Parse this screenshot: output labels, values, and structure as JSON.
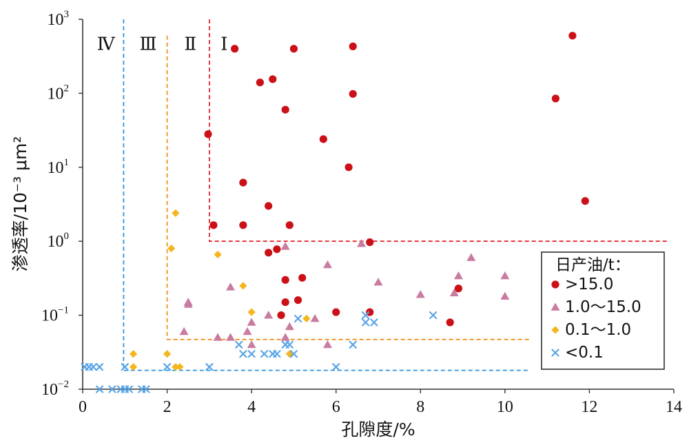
{
  "chart_data": {
    "type": "scatter",
    "title": "",
    "xlabel": "孔隙度/%",
    "ylabel": "渗透率/10⁻³ μm²",
    "xlim": [
      0,
      14
    ],
    "ylim": [
      0.01,
      1000
    ],
    "yscale": "log",
    "x_ticks": [
      "0",
      "2",
      "4",
      "6",
      "8",
      "10",
      "12",
      "14"
    ],
    "y_ticks": [
      {
        "value": 0.01,
        "base": "10",
        "exp": "−2"
      },
      {
        "value": 0.1,
        "base": "10",
        "exp": "−1"
      },
      {
        "value": 1,
        "base": "10",
        "exp": "0"
      },
      {
        "value": 10,
        "base": "10",
        "exp": "1"
      },
      {
        "value": 100,
        "base": "10",
        "exp": "2"
      },
      {
        "value": 1000,
        "base": "10",
        "exp": "3"
      }
    ],
    "grid": false,
    "legend": {
      "title": "日产油/t：",
      "placement": "bottom-right"
    },
    "region_labels": [
      {
        "label": "Ⅳ",
        "x": 0.55,
        "y": 700
      },
      {
        "label": "Ⅲ",
        "x": 1.55,
        "y": 700
      },
      {
        "label": "Ⅱ",
        "x": 2.55,
        "y": 700
      },
      {
        "label": "Ⅰ",
        "x": 3.35,
        "y": 700
      }
    ],
    "boundaries": [
      {
        "color": "#e0262e",
        "path": [
          [
            3.0,
            1000
          ],
          [
            3.0,
            1.0
          ],
          [
            13.9,
            1.0
          ]
        ]
      },
      {
        "color": "#f2901c",
        "path": [
          [
            2.0,
            600
          ],
          [
            2.0,
            0.047
          ],
          [
            10.6,
            0.047
          ]
        ]
      },
      {
        "color": "#2e94e0",
        "path": [
          [
            0.97,
            1000
          ],
          [
            0.97,
            0.018
          ],
          [
            10.6,
            0.018
          ]
        ]
      }
    ],
    "series": [
      {
        "name": ">15.0",
        "marker": "circle",
        "color": "#cc1018",
        "points": [
          [
            11.6,
            600
          ],
          [
            3.6,
            400
          ],
          [
            5.0,
            400
          ],
          [
            6.4,
            430
          ],
          [
            4.2,
            140
          ],
          [
            4.5,
            155
          ],
          [
            6.4,
            98
          ],
          [
            4.8,
            60
          ],
          [
            11.2,
            85
          ],
          [
            2.97,
            28
          ],
          [
            5.7,
            24
          ],
          [
            6.3,
            10
          ],
          [
            3.8,
            6.2
          ],
          [
            11.9,
            3.5
          ],
          [
            4.4,
            3.0
          ],
          [
            3.1,
            1.65
          ],
          [
            3.8,
            1.65
          ],
          [
            4.9,
            1.65
          ],
          [
            6.8,
            0.97
          ],
          [
            4.6,
            0.78
          ],
          [
            4.4,
            0.7
          ],
          [
            4.8,
            0.3
          ],
          [
            5.2,
            0.32
          ],
          [
            8.9,
            0.23
          ],
          [
            4.8,
            0.15
          ],
          [
            5.1,
            0.16
          ],
          [
            4.7,
            0.1
          ],
          [
            6.0,
            0.11
          ],
          [
            6.8,
            0.11
          ],
          [
            8.7,
            0.08
          ]
        ]
      },
      {
        "name": "1.0～15.0",
        "marker": "triangle",
        "color": "#c97ba0",
        "points": [
          [
            4.8,
            0.85
          ],
          [
            6.6,
            0.93
          ],
          [
            9.2,
            0.6
          ],
          [
            5.8,
            0.48
          ],
          [
            8.9,
            0.34
          ],
          [
            10.0,
            0.34
          ],
          [
            7.0,
            0.28
          ],
          [
            3.5,
            0.24
          ],
          [
            8.0,
            0.19
          ],
          [
            8.8,
            0.2
          ],
          [
            10.0,
            0.18
          ],
          [
            2.5,
            0.15
          ],
          [
            2.5,
            0.14
          ],
          [
            4.4,
            0.1
          ],
          [
            4.9,
            0.07
          ],
          [
            4.0,
            0.08
          ],
          [
            5.5,
            0.09
          ],
          [
            3.9,
            0.06
          ],
          [
            2.4,
            0.06
          ],
          [
            3.2,
            0.05
          ],
          [
            3.5,
            0.05
          ],
          [
            4.8,
            0.05
          ],
          [
            4.0,
            0.04
          ],
          [
            5.8,
            0.04
          ]
        ]
      },
      {
        "name": "0.1～1.0",
        "marker": "diamond",
        "color": "#f5b51e",
        "points": [
          [
            2.2,
            2.4
          ],
          [
            2.1,
            0.8
          ],
          [
            3.2,
            0.66
          ],
          [
            3.8,
            0.25
          ],
          [
            4.0,
            0.11
          ],
          [
            5.3,
            0.09
          ],
          [
            1.2,
            0.03
          ],
          [
            2.0,
            0.03
          ],
          [
            4.9,
            0.03
          ],
          [
            1.2,
            0.02
          ],
          [
            2.2,
            0.02
          ],
          [
            2.3,
            0.02
          ]
        ]
      },
      {
        "name": "<0.1",
        "marker": "cross",
        "color": "#5aa5e6",
        "points": [
          [
            0.05,
            0.02
          ],
          [
            0.15,
            0.02
          ],
          [
            0.25,
            0.02
          ],
          [
            0.4,
            0.02
          ],
          [
            1.0,
            0.02
          ],
          [
            2.0,
            0.02
          ],
          [
            3.0,
            0.02
          ],
          [
            6.0,
            0.02
          ],
          [
            0.4,
            0.01
          ],
          [
            0.7,
            0.01
          ],
          [
            0.9,
            0.01
          ],
          [
            1.0,
            0.01
          ],
          [
            1.1,
            0.01
          ],
          [
            1.4,
            0.01
          ],
          [
            1.5,
            0.01
          ],
          [
            3.7,
            0.04
          ],
          [
            3.8,
            0.03
          ],
          [
            4.0,
            0.03
          ],
          [
            4.3,
            0.03
          ],
          [
            4.5,
            0.03
          ],
          [
            4.6,
            0.03
          ],
          [
            4.8,
            0.04
          ],
          [
            4.9,
            0.04
          ],
          [
            5.0,
            0.03
          ],
          [
            5.1,
            0.09
          ],
          [
            6.4,
            0.04
          ],
          [
            6.7,
            0.08
          ],
          [
            6.7,
            0.1
          ],
          [
            6.9,
            0.08
          ],
          [
            8.3,
            0.1
          ]
        ]
      }
    ]
  }
}
